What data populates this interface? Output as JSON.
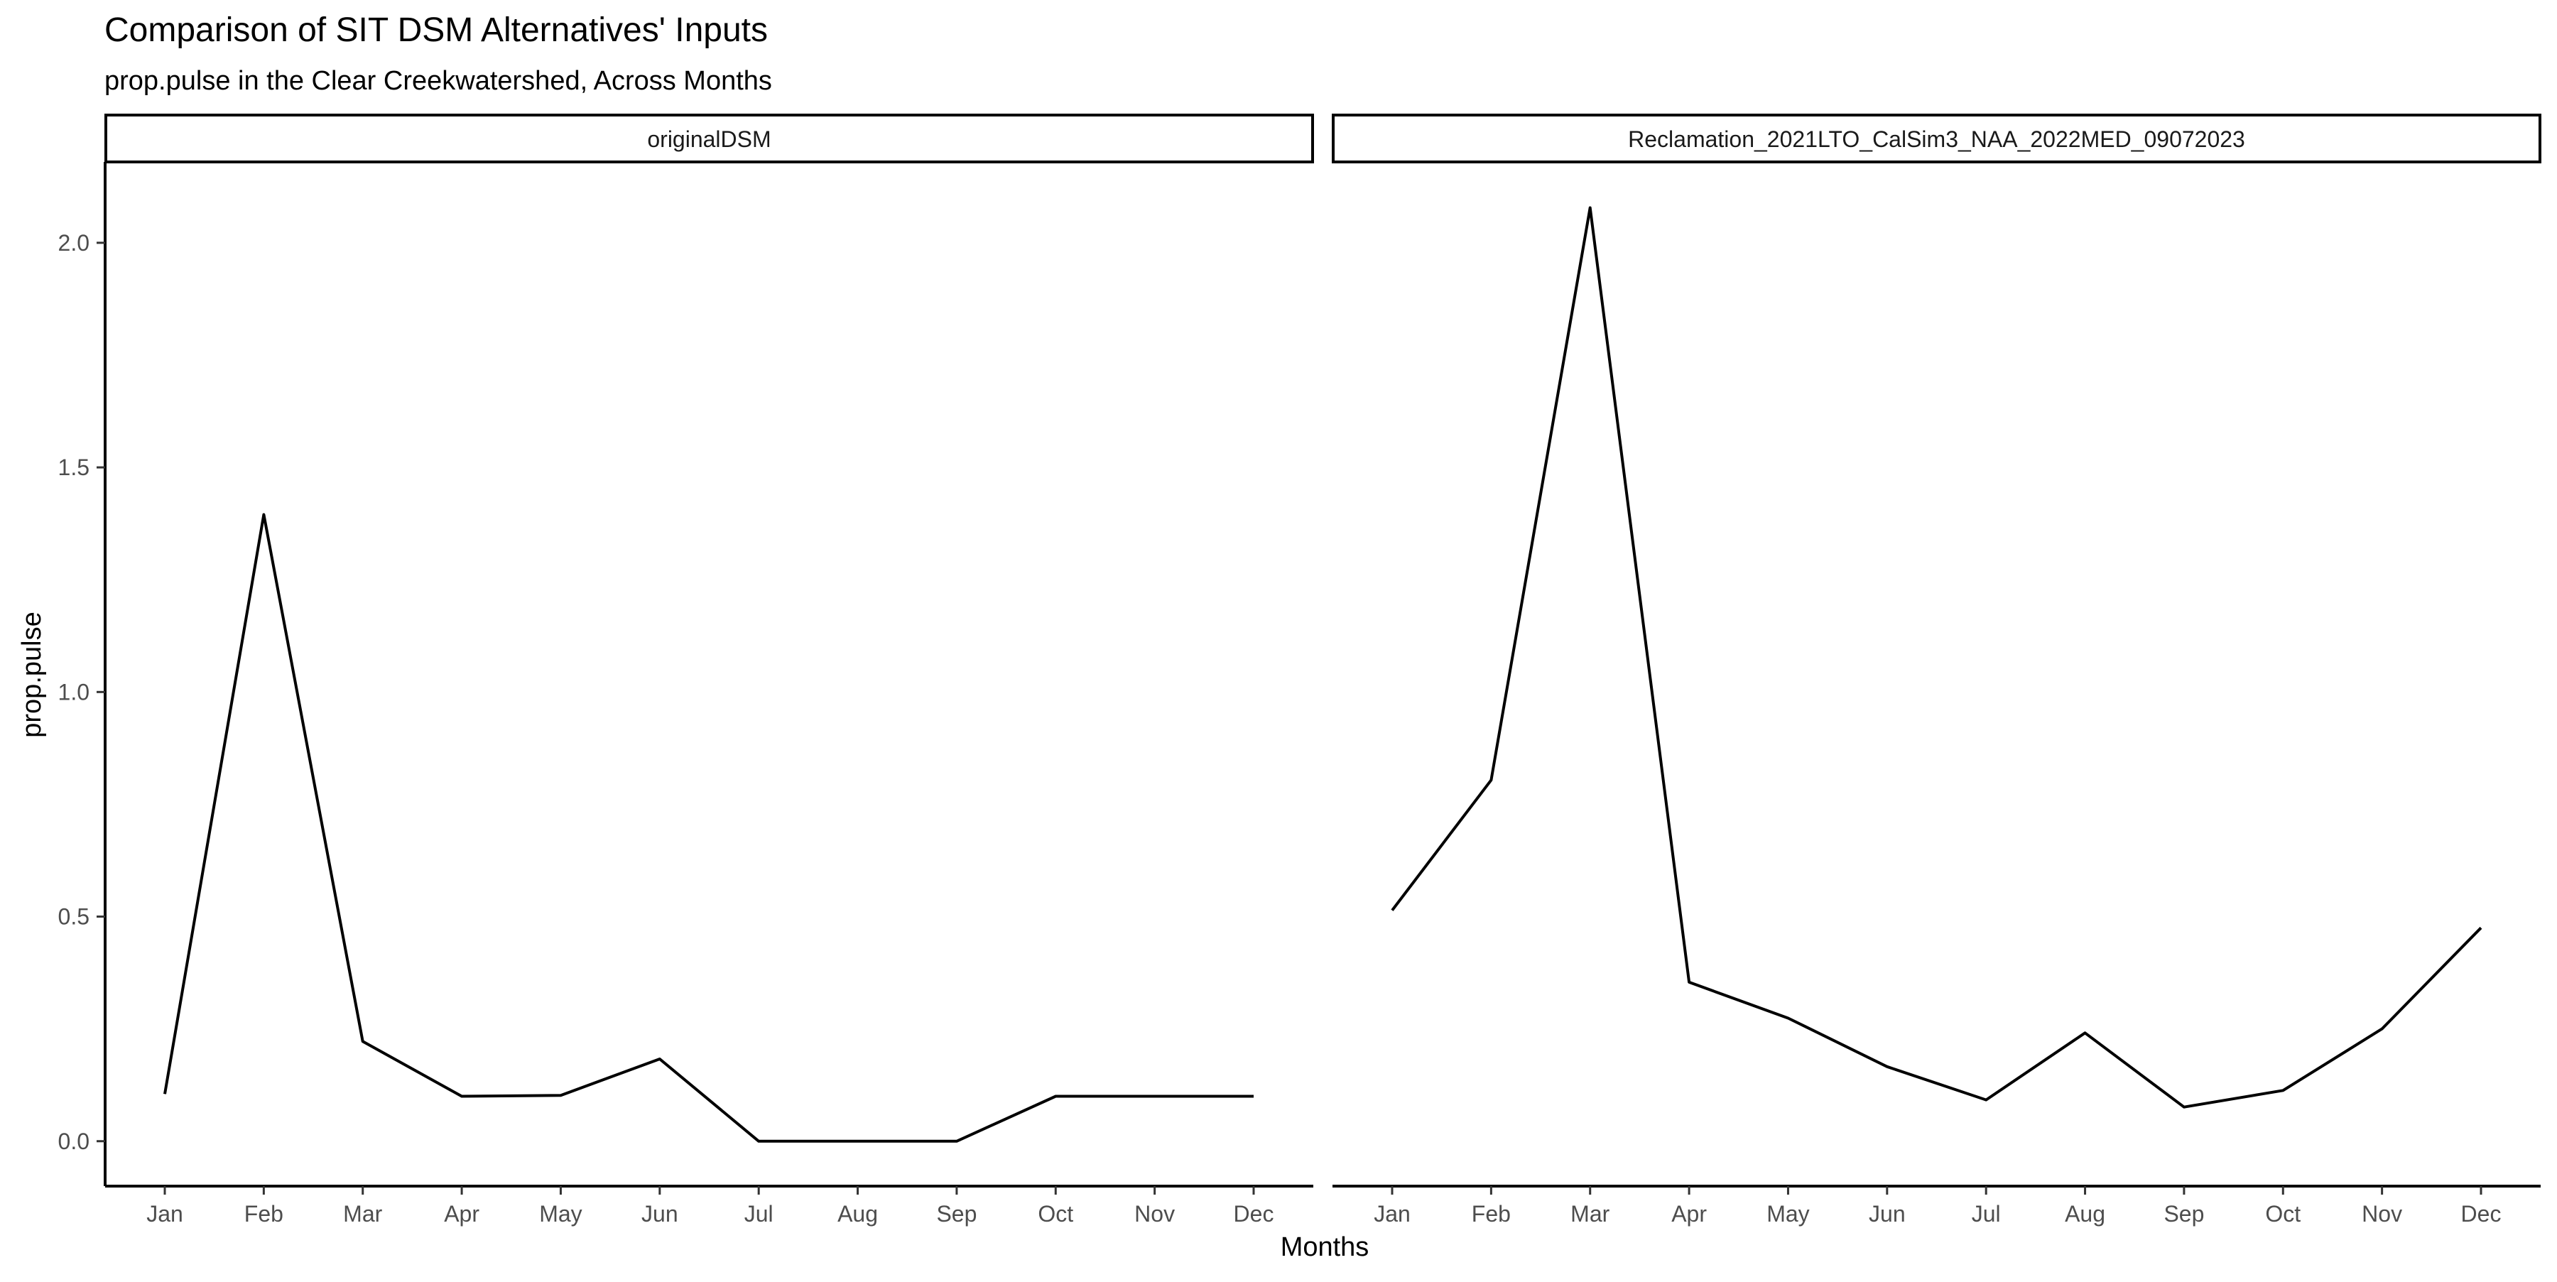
{
  "chart_data": {
    "type": "line",
    "title": "Comparison of SIT DSM Alternatives' Inputs",
    "subtitle": "prop.pulse in the Clear Creekwatershed, Across Months",
    "xlabel": "Months",
    "ylabel": "prop.pulse",
    "categories": [
      "Jan",
      "Feb",
      "Mar",
      "Apr",
      "May",
      "Jun",
      "Jul",
      "Aug",
      "Sep",
      "Oct",
      "Nov",
      "Dec"
    ],
    "ylim": [
      -0.1,
      2.18
    ],
    "yticks": [
      0.0,
      0.5,
      1.0,
      1.5,
      2.0
    ],
    "ytick_labels": [
      "0.0",
      "0.5",
      "1.0",
      "1.5",
      "2.0"
    ],
    "grid": false,
    "legend": "none",
    "line_color": "#000000",
    "facets": [
      {
        "label": "originalDSM",
        "values": [
          0.105,
          1.395,
          0.222,
          0.1,
          0.102,
          0.183,
          0.0,
          0.0,
          0.0,
          0.1,
          0.1,
          0.1
        ]
      },
      {
        "label": "Reclamation_2021LTO_CalSim3_NAA_2022MED_09072023",
        "values": [
          0.514,
          0.804,
          2.078,
          0.354,
          0.274,
          0.166,
          0.092,
          0.241,
          0.076,
          0.113,
          0.25,
          0.475
        ]
      }
    ]
  }
}
